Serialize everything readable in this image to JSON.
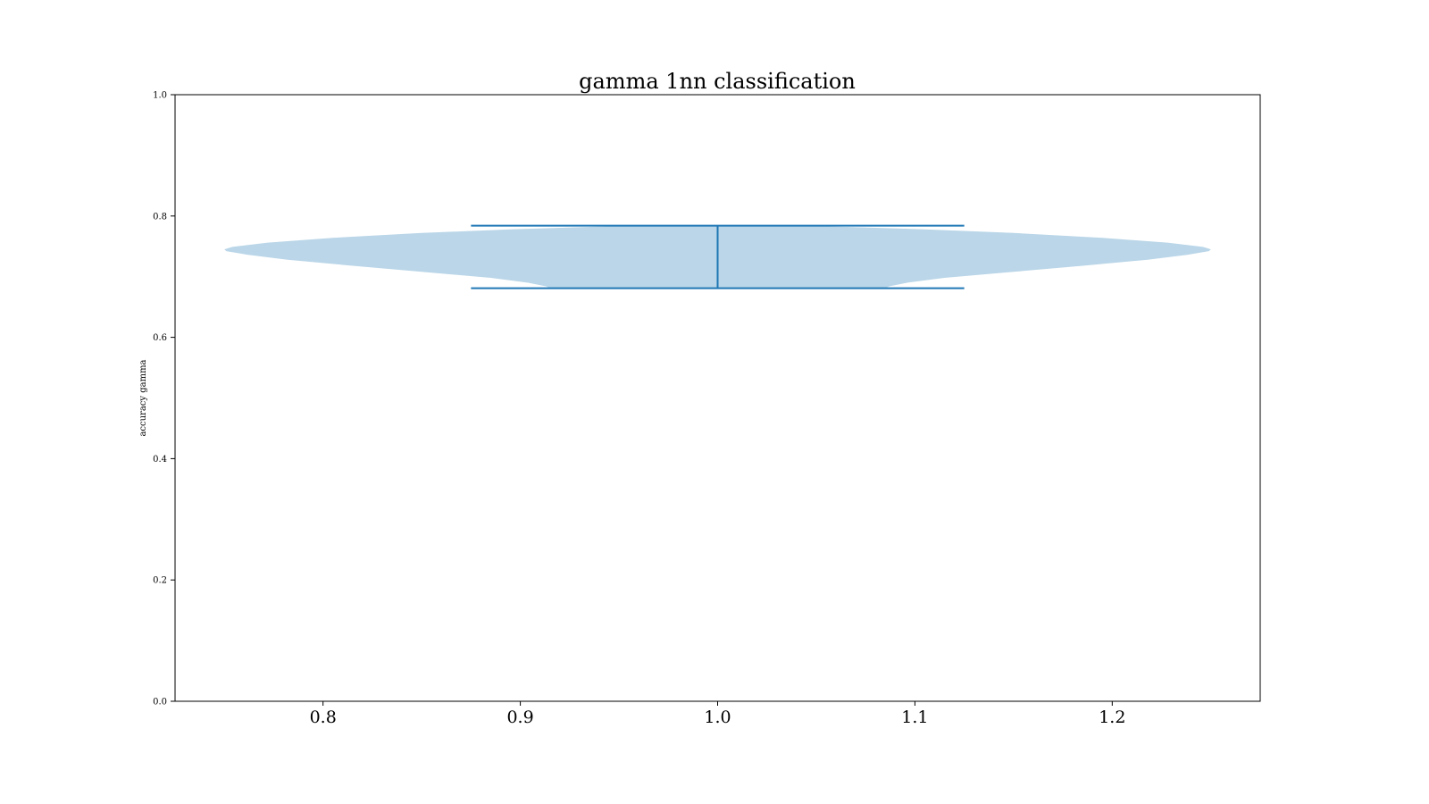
{
  "chart_data": {
    "type": "violin",
    "title": "gamma 1nn classification",
    "xlabel": "",
    "ylabel": "accuracy gamma",
    "xlim": [
      0.725,
      1.275
    ],
    "ylim": [
      0.0,
      1.0
    ],
    "xticks": [
      "0.8",
      "0.9",
      "1.0",
      "1.1",
      "1.2"
    ],
    "yticks": [
      "0.0",
      "0.2",
      "0.4",
      "0.6",
      "0.8",
      "1.0"
    ],
    "grid": false,
    "violin": {
      "position": 1.0,
      "half_width": 0.25,
      "min": 0.681,
      "max": 0.784,
      "center_line": "extrema",
      "density_profile": [
        {
          "y": 0.681,
          "half_width": 0.085
        },
        {
          "y": 0.684,
          "half_width": 0.087
        },
        {
          "y": 0.69,
          "half_width": 0.096
        },
        {
          "y": 0.698,
          "half_width": 0.115
        },
        {
          "y": 0.708,
          "half_width": 0.15
        },
        {
          "y": 0.718,
          "half_width": 0.185
        },
        {
          "y": 0.728,
          "half_width": 0.218
        },
        {
          "y": 0.736,
          "half_width": 0.238
        },
        {
          "y": 0.742,
          "half_width": 0.249
        },
        {
          "y": 0.745,
          "half_width": 0.25
        },
        {
          "y": 0.749,
          "half_width": 0.246
        },
        {
          "y": 0.756,
          "half_width": 0.228
        },
        {
          "y": 0.764,
          "half_width": 0.195
        },
        {
          "y": 0.772,
          "half_width": 0.15
        },
        {
          "y": 0.778,
          "half_width": 0.105
        },
        {
          "y": 0.782,
          "half_width": 0.065
        },
        {
          "y": 0.784,
          "half_width": 0.04
        }
      ]
    },
    "colors": {
      "body": "#bad6e8",
      "lines": "#1f77b4",
      "axes": "#000000"
    }
  }
}
